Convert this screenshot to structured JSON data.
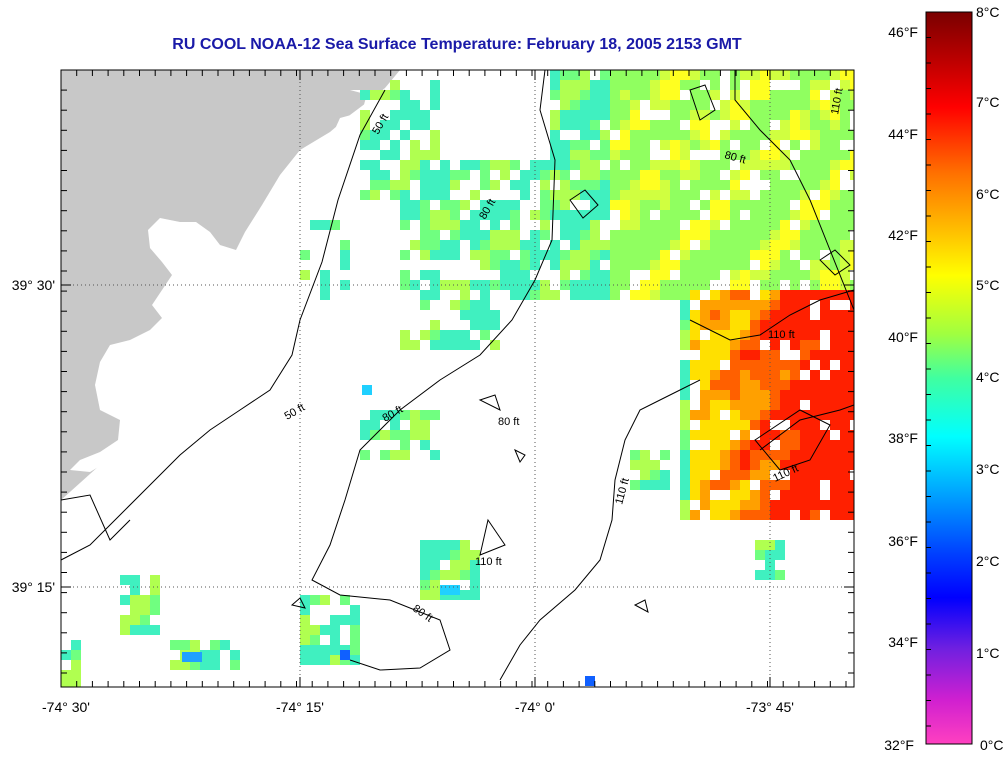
{
  "title": "RU COOL  NOAA-12  Sea Surface Temperature:  February 18, 2005 2153 GMT",
  "axes": {
    "lon_labels": [
      "-74° 30'",
      "-74° 15'",
      "-74° 0'",
      "-73° 45'"
    ],
    "lat_labels": [
      "39° 30'",
      "39° 15'"
    ]
  },
  "contour_labels": {
    "c50a": "50 ft",
    "c50b": "50 ft",
    "c80a": "80 ft",
    "c80b": "80 ft",
    "c80c": "80 ft",
    "c80d": "80 ft",
    "c110a": "110 ft",
    "c110b": "110 ft",
    "c110c": "110 ft",
    "c110d": "110 ft",
    "c110e": "110 ft"
  },
  "colorbar": {
    "fahrenheit_labels": [
      "46°F",
      "44°F",
      "42°F",
      "40°F",
      "38°F",
      "36°F",
      "34°F",
      "32°F"
    ],
    "celsius_labels": [
      "8°C",
      "7°C",
      "6°C",
      "5°C",
      "4°C",
      "3°C",
      "2°C",
      "1°C",
      "0°C"
    ]
  },
  "colors": {
    "land": "#c8c8c8",
    "title": "#1a1aa8",
    "warm": "#ff1a00",
    "cool": "#40e0c0"
  }
}
